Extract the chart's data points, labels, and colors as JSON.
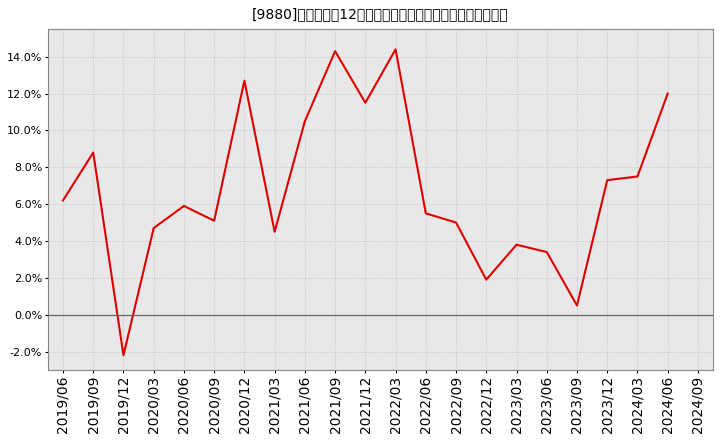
{
  "title": "[9880]　売上高の12か月移動合計の対前年同期増減率の推移",
  "dates": [
    "2019/06",
    "2019/09",
    "2019/12",
    "2020/03",
    "2020/06",
    "2020/09",
    "2020/12",
    "2021/03",
    "2021/06",
    "2021/09",
    "2021/12",
    "2022/03",
    "2022/06",
    "2022/09",
    "2022/12",
    "2023/03",
    "2023/06",
    "2023/09",
    "2023/12",
    "2024/03",
    "2024/06",
    "2024/09"
  ],
  "values": [
    0.062,
    0.088,
    -0.022,
    0.047,
    0.059,
    0.051,
    0.127,
    0.045,
    0.105,
    0.143,
    0.115,
    0.144,
    0.055,
    0.05,
    0.019,
    0.038,
    0.034,
    0.005,
    0.073,
    0.075,
    0.12,
    null
  ],
  "line_color": "#dd0000",
  "background_color": "#ffffff",
  "plot_bg_color": "#e8e8e8",
  "grid_color": "#bbbbbb",
  "ylim": [
    -0.03,
    0.155
  ],
  "yticks": [
    -0.02,
    0.0,
    0.02,
    0.04,
    0.06,
    0.08,
    0.1,
    0.12,
    0.14
  ],
  "title_fontsize": 11,
  "tick_fontsize": 8
}
